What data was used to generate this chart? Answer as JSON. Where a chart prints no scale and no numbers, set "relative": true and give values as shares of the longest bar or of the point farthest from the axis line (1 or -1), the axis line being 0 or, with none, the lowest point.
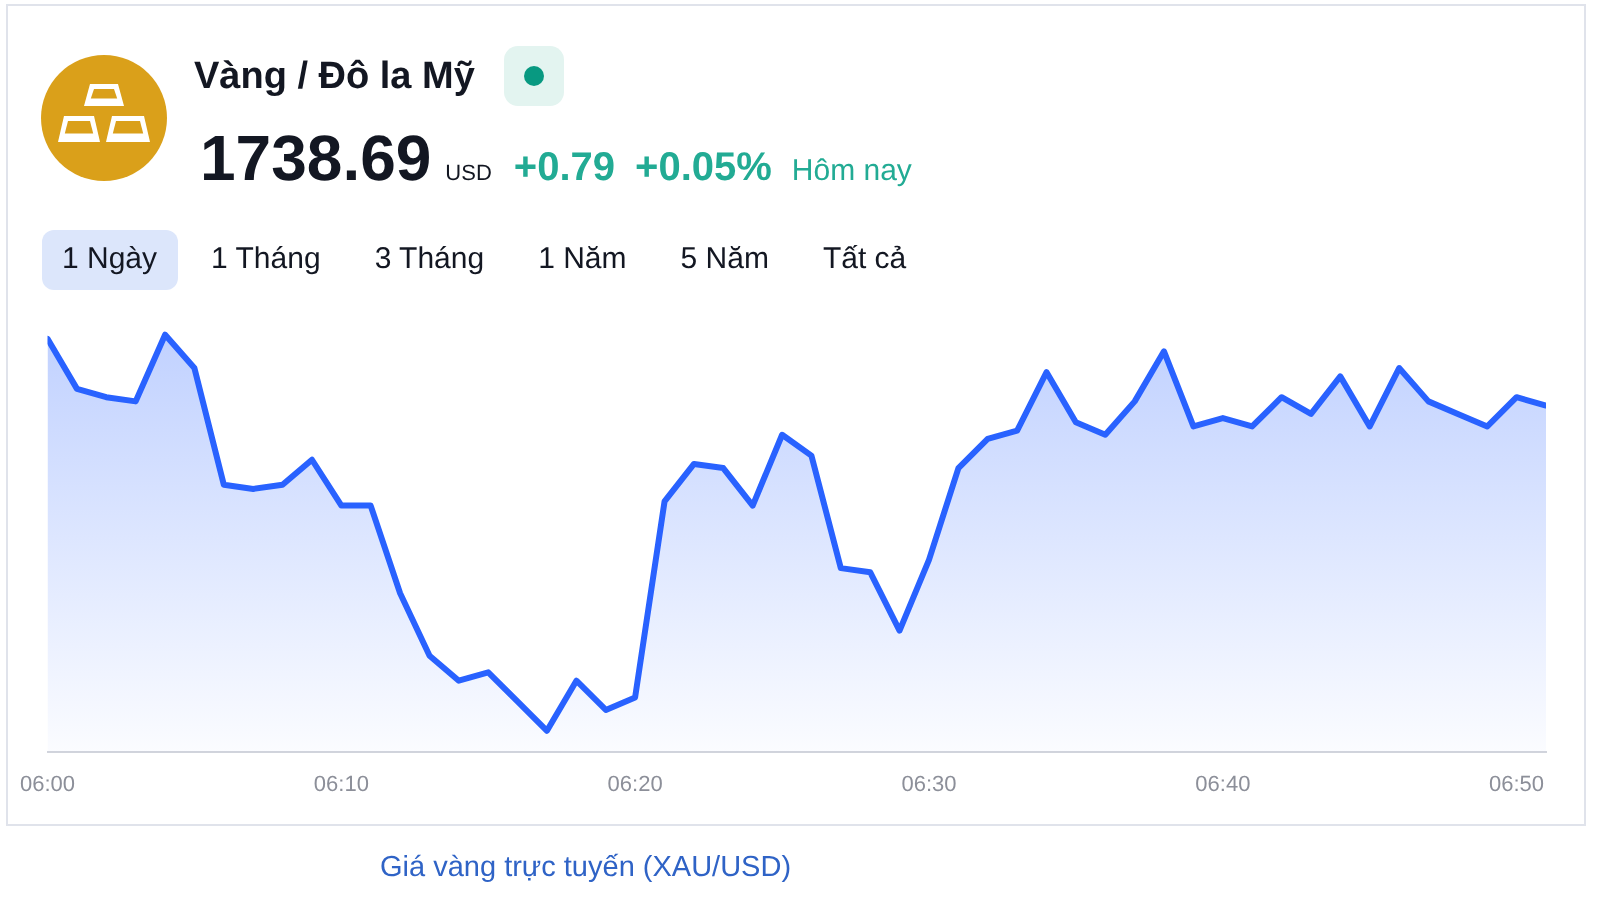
{
  "chart_data": {
    "type": "area",
    "title": "Vàng / Đô la Mỹ",
    "x": [
      6,
      6.0167,
      6.0333,
      6.05,
      6.0667,
      6.0833,
      6.1,
      6.1167,
      6.1333,
      6.15,
      6.1667,
      6.1833,
      6.2,
      6.2167,
      6.2333,
      6.25,
      6.2667,
      6.2833,
      6.3,
      6.3167,
      6.3333,
      6.35,
      6.3667,
      6.3833,
      6.4,
      6.4167,
      6.4333,
      6.45,
      6.4667,
      6.4833,
      6.5,
      6.5167,
      6.5333,
      6.55,
      6.5667,
      6.5833,
      6.6,
      6.6167,
      6.6333,
      6.65,
      6.6667,
      6.6833,
      6.7,
      6.7167,
      6.7333,
      6.75,
      6.7667,
      6.7833,
      6.8,
      6.8167,
      6.8333,
      6.85
    ],
    "values": [
      0.99,
      0.87,
      0.85,
      0.84,
      1,
      0.92,
      0.64,
      0.63,
      0.64,
      0.7,
      0.59,
      0.59,
      0.38,
      0.23,
      0.17,
      0.19,
      0.12,
      0.05,
      0.17,
      0.1,
      0.13,
      0.6,
      0.69,
      0.68,
      0.59,
      0.76,
      0.71,
      0.44,
      0.43,
      0.29,
      0.46,
      0.68,
      0.75,
      0.77,
      0.91,
      0.79,
      0.76,
      0.84,
      0.96,
      0.78,
      0.8,
      0.78,
      0.85,
      0.81,
      0.9,
      0.78,
      0.92,
      0.84,
      0.81,
      0.78,
      0.85,
      0.83
    ],
    "color": "#2962ff",
    "relative": true,
    "xlim": [
      6,
      6.85
    ],
    "xticks": [
      {
        "value": 6,
        "label": "06:00"
      },
      {
        "value": 6.1667,
        "label": "06:10"
      },
      {
        "value": 6.3333,
        "label": "06:20"
      },
      {
        "value": 6.5,
        "label": "06:30"
      },
      {
        "value": 6.6667,
        "label": "06:40"
      },
      {
        "value": 6.8333,
        "label": "06:50"
      }
    ],
    "tick_labels": "x",
    "annotations": [
      "1738.69",
      "USD",
      "+0.79",
      "+0.05%",
      "Hôm nay",
      "1 Ngày",
      "1 Tháng",
      "3 Tháng",
      "1 Năm",
      "5 Năm",
      "Tất cả",
      "Giá vàng trực tuyến (XAU/USD)"
    ]
  }
}
